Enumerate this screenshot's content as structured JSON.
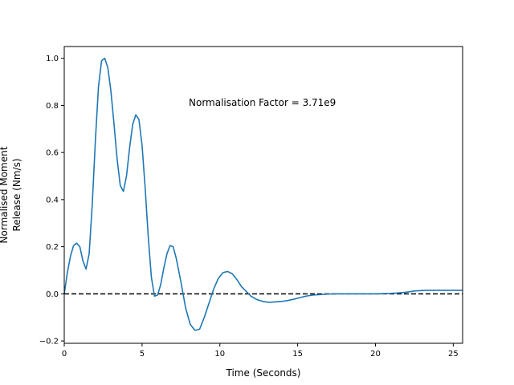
{
  "chart_data": {
    "type": "line",
    "title": "",
    "xlabel": "Time (Seconds)",
    "ylabel_lines": [
      "Normalised Moment",
      "Release (Nm/s)"
    ],
    "xlim": [
      0,
      25.6
    ],
    "ylim": [
      -0.21,
      1.05
    ],
    "x_ticks": [
      0,
      5,
      10,
      15,
      20,
      25
    ],
    "y_ticks": [
      -0.2,
      0.0,
      0.2,
      0.4,
      0.6,
      0.8,
      1.0
    ],
    "x_tick_labels": [
      "0",
      "5",
      "10",
      "15",
      "20",
      "25"
    ],
    "y_tick_labels": [
      "−0.2",
      "0.0",
      "0.2",
      "0.4",
      "0.6",
      "0.8",
      "1.0"
    ],
    "annotation": "Normalisation Factor = 3.71e9",
    "grid": false,
    "series": [
      {
        "color": "#1f77b4",
        "x": [
          0,
          0.2,
          0.4,
          0.6,
          0.8,
          1.0,
          1.2,
          1.4,
          1.6,
          1.8,
          2.0,
          2.2,
          2.4,
          2.6,
          2.8,
          3.0,
          3.2,
          3.4,
          3.6,
          3.8,
          4.0,
          4.2,
          4.4,
          4.6,
          4.8,
          5.0,
          5.2,
          5.4,
          5.6,
          5.8,
          6.0,
          6.2,
          6.4,
          6.6,
          6.8,
          7.0,
          7.2,
          7.5,
          7.8,
          8.1,
          8.4,
          8.7,
          9.0,
          9.3,
          9.6,
          9.9,
          10.2,
          10.5,
          10.8,
          11.1,
          11.4,
          11.7,
          12.0,
          12.4,
          12.8,
          13.2,
          13.6,
          14.0,
          14.4,
          14.8,
          15.2,
          15.6,
          16.0,
          16.5,
          17.0,
          17.5,
          18.0,
          18.5,
          19.0,
          19.5,
          20.0,
          20.5,
          21.0,
          21.5,
          22.0,
          22.5,
          23.0,
          23.5,
          24.0,
          24.5,
          25.0,
          25.6
        ],
        "y": [
          0.0,
          0.09,
          0.16,
          0.205,
          0.215,
          0.2,
          0.14,
          0.105,
          0.17,
          0.38,
          0.65,
          0.88,
          0.99,
          1.0,
          0.96,
          0.86,
          0.72,
          0.57,
          0.46,
          0.435,
          0.5,
          0.62,
          0.72,
          0.76,
          0.74,
          0.63,
          0.45,
          0.24,
          0.07,
          -0.01,
          -0.005,
          0.04,
          0.11,
          0.17,
          0.205,
          0.2,
          0.15,
          0.05,
          -0.06,
          -0.13,
          -0.155,
          -0.15,
          -0.1,
          -0.04,
          0.02,
          0.065,
          0.09,
          0.095,
          0.085,
          0.06,
          0.03,
          0.01,
          -0.01,
          -0.025,
          -0.033,
          -0.036,
          -0.034,
          -0.032,
          -0.028,
          -0.022,
          -0.015,
          -0.009,
          -0.005,
          -0.003,
          -0.001,
          0.0,
          0.0,
          0.0,
          0.0,
          0.0,
          0.0,
          0.001,
          0.002,
          0.004,
          0.007,
          0.012,
          0.014,
          0.015,
          0.015,
          0.015,
          0.015,
          0.015
        ]
      }
    ],
    "reference_lines": [
      {
        "orientation": "horizontal",
        "y": 0.0,
        "style": "dashed",
        "color": "#000000"
      }
    ]
  }
}
